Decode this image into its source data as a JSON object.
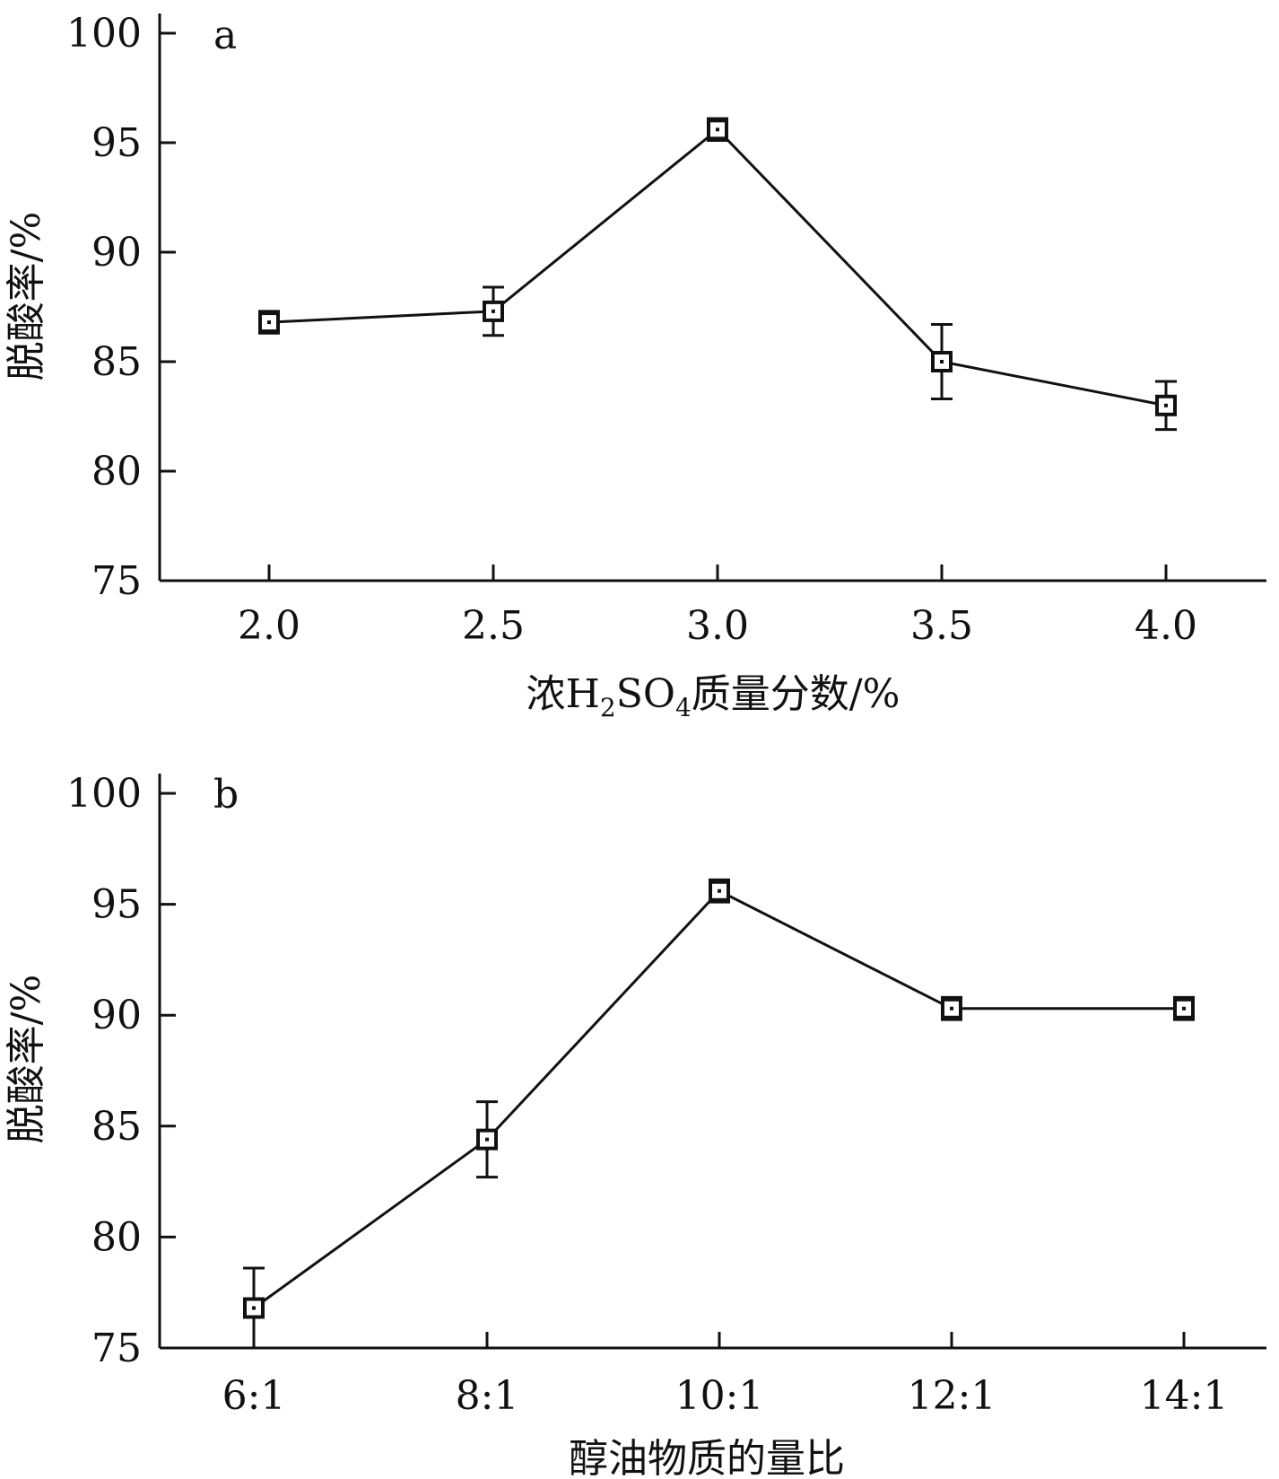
{
  "chart_data": [
    {
      "panel": "a",
      "type": "line",
      "categories": [
        "2.0",
        "2.5",
        "3.0",
        "3.5",
        "4.0"
      ],
      "series": [
        {
          "values": [
            86.8,
            87.3,
            95.6,
            85.0,
            83.0
          ],
          "errors": [
            0.5,
            1.1,
            0.5,
            1.7,
            1.1
          ]
        }
      ],
      "xlabel_parts": {
        "before": "浓H",
        "sub1": "2",
        "mid": "SO",
        "sub2": "4",
        "after": "质量分数/%"
      },
      "ylabel": "脱酸率/%",
      "ylim": [
        75,
        100
      ],
      "yticks": [
        "75",
        "80",
        "85",
        "90",
        "95",
        "100"
      ],
      "grid": false
    },
    {
      "panel": "b",
      "type": "line",
      "categories": [
        "6:1",
        "8:1",
        "10:1",
        "12:1",
        "14:1"
      ],
      "series": [
        {
          "values": [
            76.8,
            84.4,
            95.6,
            90.3,
            90.3
          ],
          "errors": [
            1.8,
            1.7,
            0.5,
            0.5,
            0.5
          ]
        }
      ],
      "xlabel": "醇油物质的量比",
      "ylabel": "脱酸率/%",
      "ylim": [
        75,
        100
      ],
      "yticks": [
        "75",
        "80",
        "85",
        "90",
        "95",
        "100"
      ],
      "grid": false
    }
  ]
}
